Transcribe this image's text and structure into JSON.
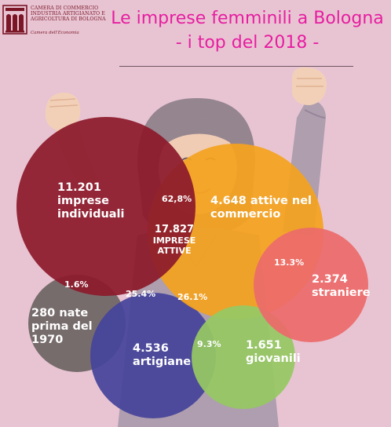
{
  "header": {
    "logo": {
      "lines": [
        "CAMERA DI COMMERCIO",
        "INDUSTRIA ARTIGIANATO E",
        "AGRICOLTURA DI BOLOGNA"
      ],
      "sub": "Camera dell'Economia"
    },
    "title_line1": "Le imprese femminili a Bologna",
    "title_line2": "- i top del 2018 -"
  },
  "colors": {
    "background": "#e8c4d3",
    "title": "#e61ea0",
    "individuali": "#8c1a2b",
    "commercio": "#f4a21f",
    "straniere": "#ec6a6a",
    "giovanili": "#96c863",
    "artigiane": "#46449a",
    "nate_prima": "#6e6564"
  },
  "icons": [
    "raised-fist-left-icon",
    "raised-fist-right-icon",
    "woman-illustration"
  ],
  "circles": {
    "individuali": {
      "line1": "11.201",
      "line2": "imprese",
      "line3": "individuali"
    },
    "commercio": {
      "line1": "4.648 attive nel",
      "line2": "commercio"
    },
    "straniere": {
      "line1": "2.374",
      "line2": "straniere"
    },
    "giovanili": {
      "line1": "1.651",
      "line2": "giovanili"
    },
    "artigiane": {
      "line1": "4.536",
      "line2": "artigiane"
    },
    "nate_prima": {
      "line1": "280 nate",
      "line2": "prima del",
      "line3": "1970"
    }
  },
  "center": {
    "line1": "17.827",
    "line2": "IMPRESE",
    "line3": "ATTIVE"
  },
  "percentages": {
    "individuali": "62,8%",
    "commercio": "26.1%",
    "straniere": "13.3%",
    "giovanili": "9.3%",
    "artigiane": "25.4%",
    "nate_prima": "1.6%"
  }
}
